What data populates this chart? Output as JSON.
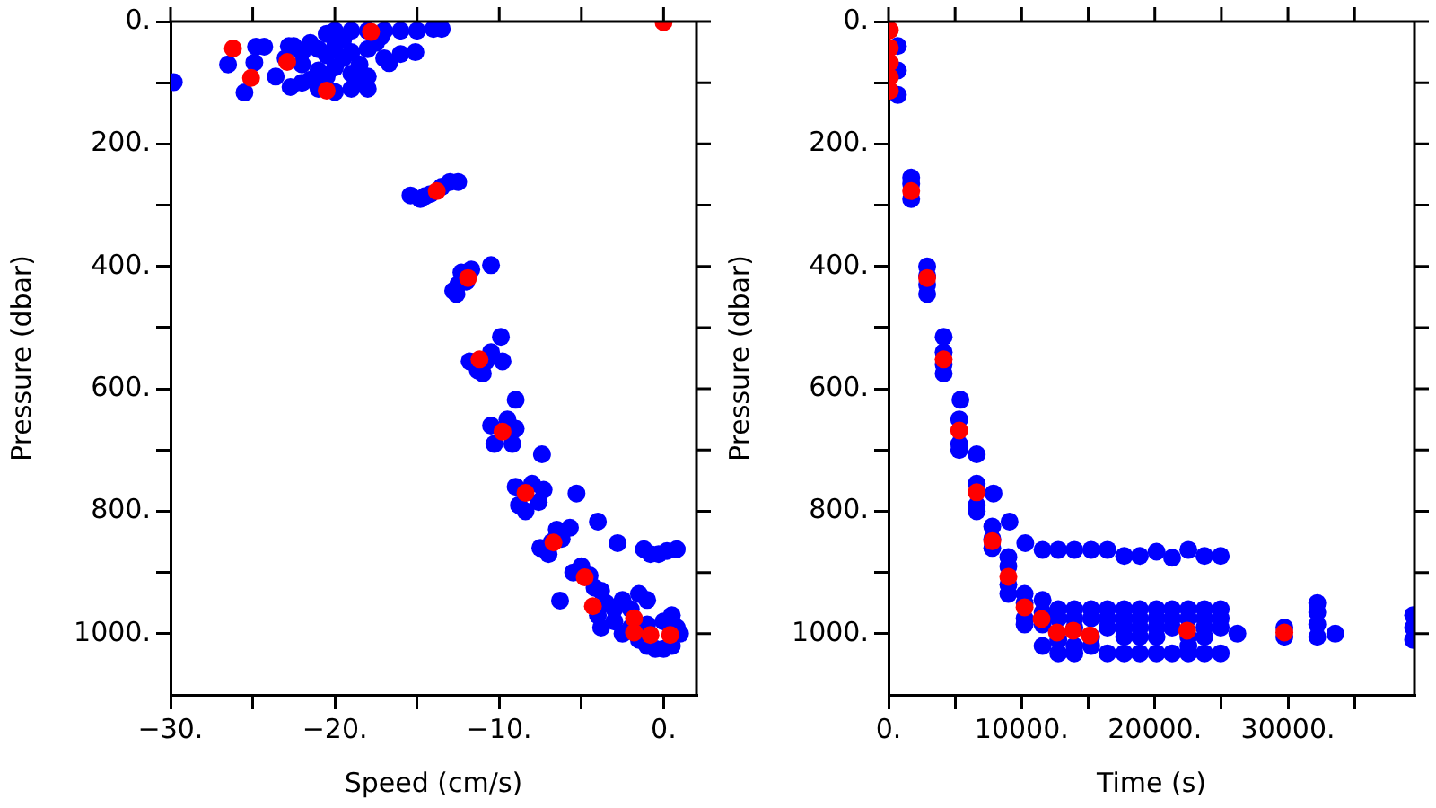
{
  "chart_data": [
    {
      "type": "scatter",
      "xlabel": "Speed (cm/s)",
      "ylabel": "Pressure (dbar)",
      "xlim": [
        -30,
        2
      ],
      "ylim": [
        1100,
        0
      ],
      "xticks": [
        {
          "value": -30,
          "label": "−30."
        },
        {
          "value": -25,
          "label": null
        },
        {
          "value": -20,
          "label": "−20."
        },
        {
          "value": -15,
          "label": null
        },
        {
          "value": -10,
          "label": "−10."
        },
        {
          "value": -5,
          "label": null
        },
        {
          "value": 0,
          "label": "0."
        }
      ],
      "yticks": [
        {
          "value": 0,
          "label": "0."
        },
        {
          "value": 100,
          "label": null
        },
        {
          "value": 200,
          "label": "200."
        },
        {
          "value": 300,
          "label": null
        },
        {
          "value": 400,
          "label": "400."
        },
        {
          "value": 500,
          "label": null
        },
        {
          "value": 600,
          "label": "600."
        },
        {
          "value": 700,
          "label": null
        },
        {
          "value": 800,
          "label": "800."
        },
        {
          "value": 900,
          "label": null
        },
        {
          "value": 1000,
          "label": "1000."
        }
      ],
      "marker": "circle",
      "grid": false,
      "legend": false,
      "series": [
        {
          "color": "#0000ff",
          "x": [
            -22.5,
            -22,
            -21.5,
            -21,
            -20.5,
            -20,
            -19.5,
            -19,
            -18.5,
            -18,
            -22,
            -21,
            -20,
            -19,
            -18,
            -22,
            -21,
            -20,
            -19,
            -18.5,
            -20.5,
            -21.5,
            -19.5,
            -20.5,
            -20,
            -19,
            -18,
            -17,
            -16,
            -15,
            -14,
            -13.5,
            -17.5,
            -17,
            -18,
            -23,
            -22.8,
            -17.2,
            -29.8,
            -26.5,
            -25.5,
            -24.8,
            -24.9,
            -24.3,
            -23.6,
            -22.7,
            -15.1,
            -16,
            -16.7,
            -15.4,
            -14.8,
            -14.2,
            -13.5,
            -13,
            -12.5,
            -14.5,
            -12.5,
            -12.8,
            -12.3,
            -11.7,
            -10.5,
            -12,
            -12.6,
            -11.3,
            -11,
            -10.5,
            -10.8,
            -9.9,
            -9.8,
            -11.8,
            -9,
            -10.5,
            -10.3,
            -9.5,
            -9,
            -9.2,
            -7.4,
            -9,
            -8.8,
            -8,
            -7.3,
            -8.4,
            -7.6,
            -5.3,
            -7.5,
            -7,
            -6.5,
            -6.2,
            -6.8,
            -5.7,
            -4,
            -2.8,
            -1.2,
            -0.8,
            -0.3,
            0.2,
            0.8,
            -5.5,
            -5,
            -4.5,
            -4.2,
            -3.8,
            -6.3,
            -3.5,
            -3,
            -2.5,
            -2,
            -1.5,
            -1,
            -4,
            -3,
            -2,
            -1,
            0,
            0.5,
            0.8,
            -1.5,
            -1,
            -0.5,
            0,
            0.5,
            -2.5,
            1,
            -3.8
          ],
          "values": [
            40,
            50,
            35,
            45,
            55,
            40,
            60,
            50,
            70,
            45,
            70,
            80,
            75,
            85,
            90,
            100,
            110,
            115,
            110,
            100,
            90,
            95,
            30,
            20,
            15,
            15,
            15,
            15,
            15,
            15,
            12,
            12,
            35,
            60,
            110,
            60,
            40,
            25,
            99,
            70,
            116,
            41,
            67,
            41,
            90,
            107,
            50,
            53,
            68,
            284,
            290,
            282,
            270,
            262,
            262,
            285,
            430,
            440,
            410,
            405,
            398,
            425,
            445,
            570,
            575,
            540,
            555,
            515,
            555,
            555,
            618,
            660,
            690,
            650,
            665,
            690,
            707,
            760,
            790,
            755,
            765,
            800,
            785,
            771,
            860,
            870,
            830,
            845,
            850,
            827,
            817,
            852,
            862,
            870,
            870,
            865,
            862,
            900,
            890,
            905,
            925,
            930,
            946,
            950,
            960,
            945,
            960,
            935,
            945,
            970,
            980,
            990,
            985,
            980,
            970,
            990,
            1010,
            1020,
            1025,
            1025,
            1020,
            1000,
            1000,
            990
          ]
        },
        {
          "color": "#ff0000",
          "x": [
            -26.2,
            -25.1,
            -22.9,
            -20.5,
            -17.8,
            0,
            -13.8,
            -11.9,
            -11.2,
            -9.8,
            -8.4,
            -6.7,
            -4.8,
            -4.3,
            -1.8,
            -1.8,
            -0.8,
            0.4
          ],
          "values": [
            44,
            92,
            66,
            113,
            17,
            1,
            277,
            419,
            552,
            670,
            770,
            851,
            908,
            955,
            975,
            998,
            1002,
            1002
          ]
        }
      ]
    },
    {
      "type": "scatter",
      "xlabel": "Time (s)",
      "ylabel": "Pressure (dbar)",
      "xlim": [
        0,
        39500
      ],
      "ylim": [
        1100,
        0
      ],
      "xticks": [
        {
          "value": 0,
          "label": "0."
        },
        {
          "value": 5000,
          "label": null
        },
        {
          "value": 10000,
          "label": "10000."
        },
        {
          "value": 15000,
          "label": null
        },
        {
          "value": 20000,
          "label": "20000."
        },
        {
          "value": 25000,
          "label": null
        },
        {
          "value": 30000,
          "label": "30000."
        },
        {
          "value": 35000,
          "label": null
        }
      ],
      "yticks": [
        {
          "value": 0,
          "label": "0."
        },
        {
          "value": 100,
          "label": null
        },
        {
          "value": 200,
          "label": "200."
        },
        {
          "value": 300,
          "label": null
        },
        {
          "value": 400,
          "label": "400."
        },
        {
          "value": 500,
          "label": null
        },
        {
          "value": 600,
          "label": "600."
        },
        {
          "value": 700,
          "label": null
        },
        {
          "value": 800,
          "label": "800."
        },
        {
          "value": 900,
          "label": null
        },
        {
          "value": 1000,
          "label": "1000."
        }
      ],
      "marker": "circle",
      "grid": false,
      "legend": false,
      "series": [
        {
          "color": "#0000ff",
          "x": [
            700,
            700,
            700,
            1700,
            1700,
            1700,
            2900,
            2900,
            2900,
            2900,
            4140,
            4140,
            4140,
            4140,
            5400,
            5310,
            5310,
            5310,
            6620,
            6620,
            6620,
            6620,
            7880,
            7790,
            7790,
            7790,
            9090,
            9000,
            9000,
            9000,
            9000,
            10220,
            10220,
            10220,
            10220,
            10270,
            11570,
            12750,
            13960,
            15220,
            16440,
            17700,
            18870,
            20130,
            21300,
            22520,
            23730,
            24950,
            11570,
            11570,
            11570,
            11570,
            12750,
            12750,
            12750,
            12750,
            13960,
            13960,
            13960,
            13960,
            13960,
            15220,
            15220,
            15220,
            15220,
            16440,
            16440,
            16440,
            16440,
            17700,
            17700,
            17700,
            17700,
            17700,
            18870,
            18870,
            18870,
            18870,
            18870,
            20130,
            20130,
            20130,
            20130,
            20130,
            21300,
            21300,
            21300,
            21300,
            22520,
            22520,
            22520,
            22520,
            22520,
            23730,
            23730,
            23730,
            23730,
            23730,
            24950,
            24950,
            24950,
            24950,
            26200,
            29730,
            29730,
            32200,
            32200,
            32200,
            32200,
            33550,
            39400,
            39400,
            39400
          ],
          "values": [
            40,
            80,
            120,
            255,
            265,
            290,
            400,
            415,
            430,
            445,
            515,
            540,
            560,
            575,
            618,
            650,
            690,
            700,
            707,
            755,
            790,
            800,
            771,
            825,
            845,
            860,
            817,
            875,
            890,
            920,
            935,
            935,
            950,
            975,
            985,
            852,
            863,
            863,
            863,
            863,
            863,
            873,
            873,
            866,
            876,
            863,
            873,
            873,
            945,
            965,
            985,
            1020,
            960,
            975,
            1010,
            1032,
            960,
            975,
            990,
            1020,
            1032,
            960,
            975,
            1005,
            1020,
            960,
            975,
            990,
            1032,
            960,
            975,
            990,
            1005,
            1032,
            960,
            975,
            990,
            1005,
            1032,
            960,
            975,
            990,
            1005,
            1032,
            960,
            975,
            990,
            1032,
            960,
            975,
            1005,
            1020,
            1032,
            960,
            975,
            990,
            1005,
            1032,
            960,
            975,
            990,
            1032,
            1000,
            990,
            1005,
            950,
            965,
            985,
            1005,
            1000,
            970,
            990,
            1010
          ]
        },
        {
          "color": "#ff0000",
          "x": [
            100,
            100,
            100,
            100,
            100,
            1700,
            2900,
            4140,
            5310,
            6620,
            7790,
            9000,
            10220,
            11490,
            12650,
            13870,
            15130,
            22430,
            29730
          ],
          "values": [
            14,
            43,
            67,
            91,
            113,
            277,
            419,
            552,
            668,
            769,
            849,
            907,
            957,
            976,
            998,
            995,
            1003,
            995,
            998
          ]
        }
      ]
    }
  ]
}
